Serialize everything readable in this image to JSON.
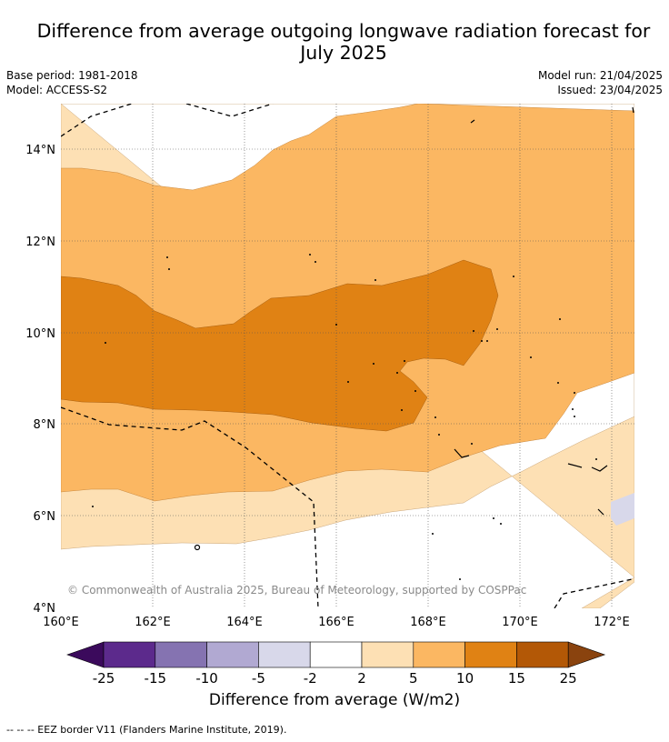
{
  "header": {
    "title_line1": "Difference from average outgoing longwave radiation forecast for",
    "title_line2": "July 2025",
    "base_period": "Base period: 1981-2018",
    "model": "Model: ACCESS-S2",
    "model_run": "Model run: 21/04/2025",
    "issued": "Issued: 23/04/2025"
  },
  "map": {
    "lon_range": [
      160,
      172.5
    ],
    "lat_range": [
      4,
      15
    ],
    "lon_ticks": [
      "160°E",
      "162°E",
      "164°E",
      "166°E",
      "168°E",
      "170°E",
      "172°E"
    ],
    "lat_ticks": [
      "4°N",
      "6°N",
      "8°N",
      "10°N",
      "12°N",
      "14°N"
    ],
    "grid": true,
    "copyright": "© Commonwealth of Australia 2025, Bureau of Meteorology, supported by COSPPac"
  },
  "colorbar": {
    "title": "Difference from average (W/m2)",
    "ticks": [
      "-25",
      "-15",
      "-10",
      "-5",
      "-2",
      "2",
      "5",
      "10",
      "15",
      "25"
    ],
    "colors": [
      "#3b0a5c",
      "#5c2a8c",
      "#8573b1",
      "#b1a9d2",
      "#d8d8ea",
      "#ffffff",
      "#fde0b4",
      "#fbb762",
      "#e08214",
      "#b35806",
      "#8a430e"
    ]
  },
  "footnote": "--  --  -- EEZ border V11 (Flanders Marine Institute, 2019)."
}
